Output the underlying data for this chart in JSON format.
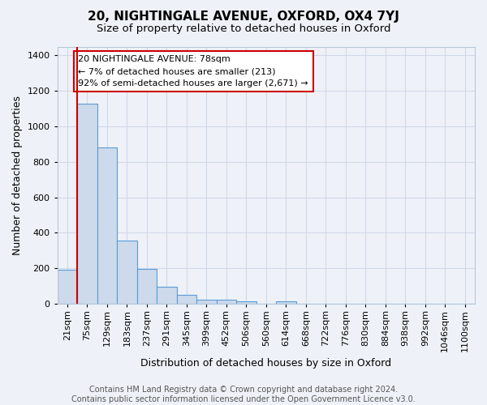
{
  "title1": "20, NIGHTINGALE AVENUE, OXFORD, OX4 7YJ",
  "title2": "Size of property relative to detached houses in Oxford",
  "xlabel": "Distribution of detached houses by size in Oxford",
  "ylabel": "Number of detached properties",
  "bin_labels": [
    "21sqm",
    "75sqm",
    "129sqm",
    "183sqm",
    "237sqm",
    "291sqm",
    "345sqm",
    "399sqm",
    "452sqm",
    "506sqm",
    "560sqm",
    "614sqm",
    "668sqm",
    "722sqm",
    "776sqm",
    "830sqm",
    "884sqm",
    "938sqm",
    "992sqm",
    "1046sqm",
    "1100sqm"
  ],
  "bar_heights": [
    190,
    1130,
    880,
    355,
    195,
    95,
    50,
    22,
    20,
    15,
    0,
    12,
    0,
    0,
    0,
    0,
    0,
    0,
    0,
    0,
    0
  ],
  "bar_color": "#ccdaeb",
  "bar_edge_color": "#5b9bd5",
  "grid_color": "#d0d8e8",
  "background_color": "#eef2f8",
  "vline_color": "#cc0000",
  "annotation_text": "20 NIGHTINGALE AVENUE: 78sqm\n← 7% of detached houses are smaller (213)\n92% of semi-detached houses are larger (2,671) →",
  "annotation_box_color": "#ffffff",
  "annotation_box_edge_color": "#cc0000",
  "ylim": [
    0,
    1450
  ],
  "yticks": [
    0,
    200,
    400,
    600,
    800,
    1000,
    1200,
    1400
  ],
  "footer": "Contains HM Land Registry data © Crown copyright and database right 2024.\nContains public sector information licensed under the Open Government Licence v3.0.",
  "title1_fontsize": 11,
  "title2_fontsize": 9.5,
  "xlabel_fontsize": 9,
  "ylabel_fontsize": 9,
  "tick_fontsize": 8,
  "annotation_fontsize": 8,
  "footer_fontsize": 7
}
